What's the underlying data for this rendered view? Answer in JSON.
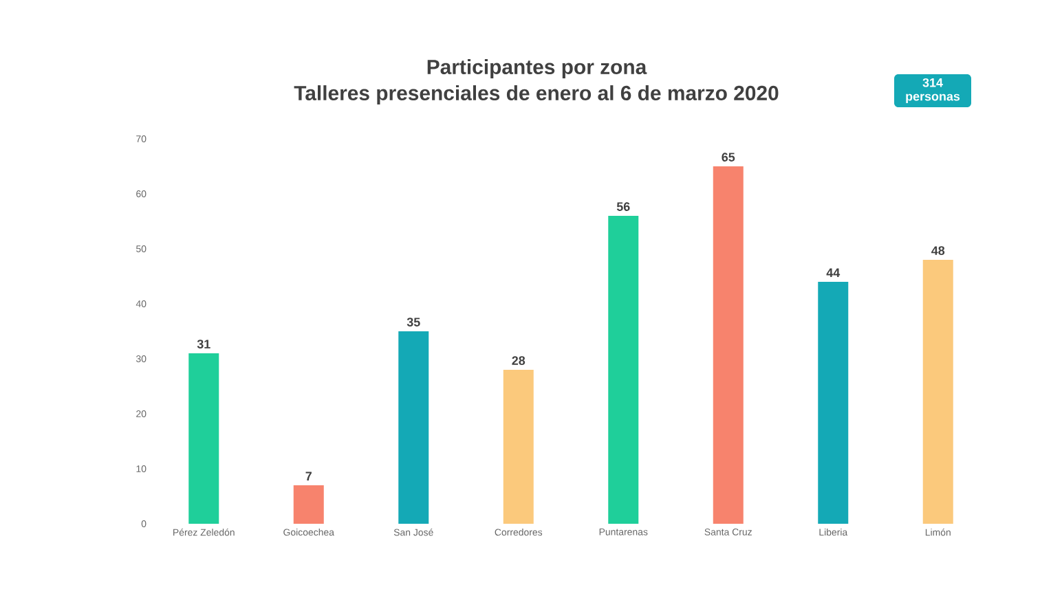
{
  "chart_data": {
    "type": "bar",
    "title": "Participantes por zona",
    "subtitle": "Talleres presenciales de enero al 6 de marzo 2020",
    "annotations": [
      "314 personas"
    ],
    "categories": [
      "Pérez Zeledón",
      "Goicoechea",
      "San José",
      "Corredores",
      "Puntarenas",
      "Santa Cruz",
      "Liberia",
      "Limón"
    ],
    "values": [
      31,
      7,
      35,
      28,
      56,
      65,
      44,
      48
    ],
    "colors": [
      "#1fcf9a",
      "#f7836d",
      "#14a9b6",
      "#fbc97c",
      "#1fcf9a",
      "#f7836d",
      "#14a9b6",
      "#fbc97c"
    ],
    "ylim": [
      0,
      70
    ],
    "yticks": [
      0,
      10,
      20,
      30,
      40,
      50,
      60,
      70
    ],
    "data_labels": true
  }
}
